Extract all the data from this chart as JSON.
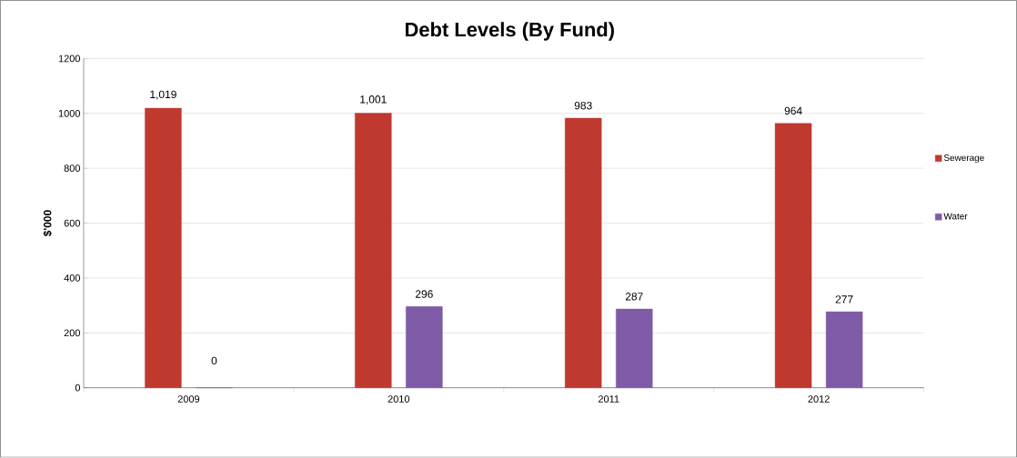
{
  "chart_data": {
    "type": "bar",
    "title": "Debt Levels (By Fund)",
    "ylabel": "$'000",
    "categories": [
      "2009",
      "2010",
      "2011",
      "2012"
    ],
    "series": [
      {
        "name": "Sewerage",
        "color": "#c0392f",
        "values": [
          1019,
          1001,
          983,
          964
        ],
        "value_labels": [
          "1,019",
          "1,001",
          "983",
          "964"
        ]
      },
      {
        "name": "Water",
        "color": "#7f5aa6",
        "values": [
          0,
          296,
          287,
          277
        ],
        "value_labels": [
          "0",
          "296",
          "287",
          "277"
        ]
      }
    ],
    "ylim": [
      0,
      1200
    ],
    "yticks": [
      0,
      200,
      400,
      600,
      800,
      1000,
      1200
    ],
    "grid": "y",
    "legend": "right"
  }
}
